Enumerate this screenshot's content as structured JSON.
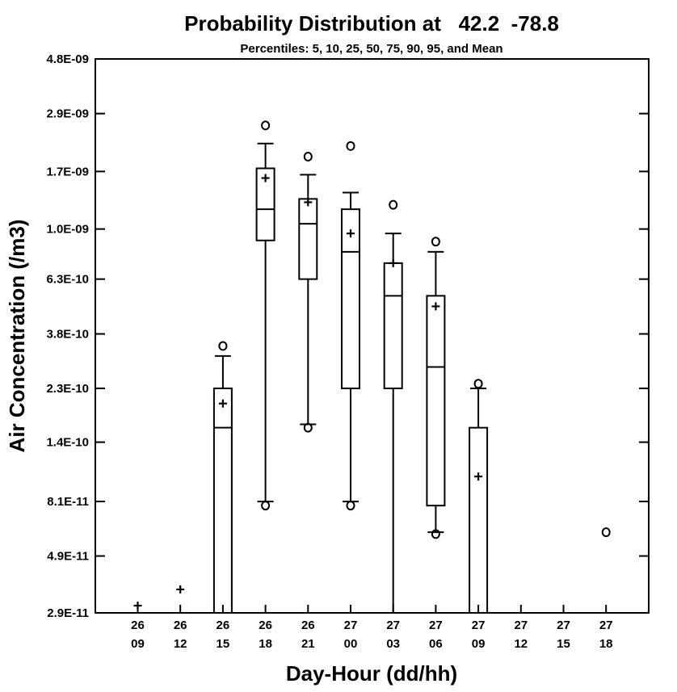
{
  "chart_data": {
    "type": "box",
    "title": "Probability Distribution at   42.2  -78.8",
    "subtitle": "Percentiles: 5, 10, 25, 50, 75, 90, 95, and Mean",
    "xlabel": "Day-Hour (dd/hh)",
    "ylabel": "Air Concentration (/m3)",
    "yscale": "log",
    "ylim": [
      2.9e-11,
      4.8e-09
    ],
    "yticks": [
      {
        "value": 2.9e-11,
        "label": "2.9E-11"
      },
      {
        "value": 4.9e-11,
        "label": "4.9E-11"
      },
      {
        "value": 8.1e-11,
        "label": "8.1E-11"
      },
      {
        "value": 1.4e-10,
        "label": "1.4E-10"
      },
      {
        "value": 2.3e-10,
        "label": "2.3E-10"
      },
      {
        "value": 3.8e-10,
        "label": "3.8E-10"
      },
      {
        "value": 6.3e-10,
        "label": "6.3E-10"
      },
      {
        "value": 1e-09,
        "label": "1.0E-09"
      },
      {
        "value": 1.7e-09,
        "label": "1.7E-09"
      },
      {
        "value": 2.9e-09,
        "label": "2.9E-09"
      },
      {
        "value": 4.8e-09,
        "label": "4.8E-09"
      }
    ],
    "categories": [
      {
        "day": "26",
        "hour": "09",
        "mean": 3.1e-11
      },
      {
        "day": "26",
        "hour": "12",
        "mean": 3.6e-11
      },
      {
        "day": "26",
        "hour": "15",
        "p90": 3.1e-10,
        "p75": 2.3e-10,
        "p50": 1.6e-10,
        "mean": 2e-10,
        "p95": 3.4e-10
      },
      {
        "day": "26",
        "hour": "18",
        "p5": 7.8e-11,
        "p10": 8.1e-11,
        "p25": 9e-10,
        "p50": 1.2e-09,
        "p75": 1.75e-09,
        "p90": 2.2e-09,
        "p95": 2.6e-09,
        "mean": 1.6e-09
      },
      {
        "day": "26",
        "hour": "21",
        "p5": 1.6e-10,
        "p10": 1.65e-10,
        "p25": 6.3e-10,
        "p50": 1.05e-09,
        "p75": 1.32e-09,
        "p90": 1.65e-09,
        "p95": 1.95e-09,
        "mean": 1.28e-09
      },
      {
        "day": "27",
        "hour": "00",
        "p5": 7.8e-11,
        "p10": 8.1e-11,
        "p25": 2.3e-10,
        "p50": 8.1e-10,
        "p75": 1.2e-09,
        "p90": 1.4e-09,
        "p95": 2.15e-09,
        "mean": 9.6e-10
      },
      {
        "day": "27",
        "hour": "03",
        "p25": 2.3e-10,
        "p50": 5.4e-10,
        "p75": 7.3e-10,
        "p90": 9.6e-10,
        "p95": 1.25e-09,
        "mean": 7.3e-10
      },
      {
        "day": "27",
        "hour": "06",
        "p5": 6e-11,
        "p10": 6.1e-11,
        "p25": 7.8e-11,
        "p50": 2.8e-10,
        "p75": 5.4e-10,
        "p90": 8.1e-10,
        "p95": 8.9e-10,
        "mean": 4.9e-10
      },
      {
        "day": "27",
        "hour": "09",
        "p75": 1.6e-10,
        "p90": 2.3e-10,
        "p95": 2.4e-10,
        "mean": 1.02e-10
      },
      {
        "day": "27",
        "hour": "12"
      },
      {
        "day": "27",
        "hour": "15"
      },
      {
        "day": "27",
        "hour": "18",
        "p95": 6.1e-11
      }
    ]
  }
}
